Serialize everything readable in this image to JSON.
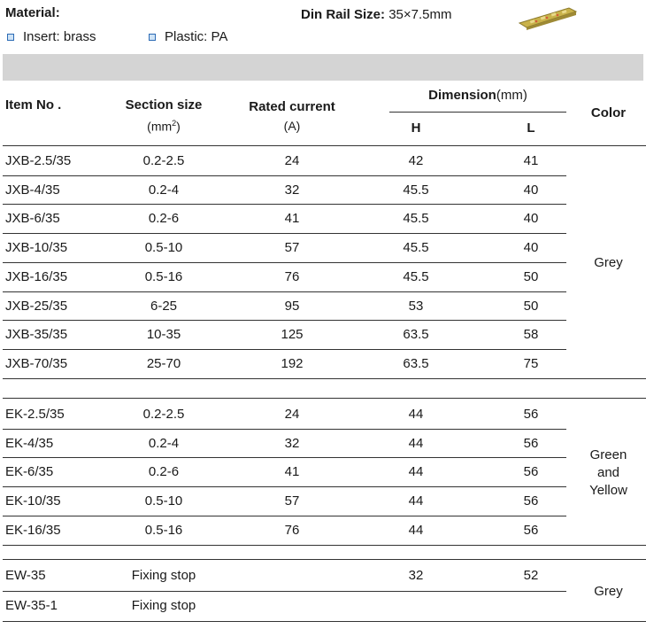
{
  "material": {
    "title": "Material:",
    "insert": "Insert: brass",
    "plastic": "Plastic: PA"
  },
  "din_rail": {
    "label": "Din Rail Size:",
    "value": "35×7.5mm"
  },
  "table": {
    "headers": {
      "item": "Item No .",
      "section": "Section size",
      "section_unit_pre": "(mm",
      "section_unit_sup": "2",
      "section_unit_post": ")",
      "current": "Rated current",
      "current_unit": "(A)",
      "dimension": "Dimension",
      "dimension_unit": "(mm)",
      "h": "H",
      "l": "L",
      "color": "Color"
    },
    "groups": [
      {
        "color": [
          "Grey"
        ],
        "rows": [
          {
            "item": "JXB-2.5/35",
            "section": "0.2-2.5",
            "current": "24",
            "h": "42",
            "l": "41"
          },
          {
            "item": "JXB-4/35",
            "section": "0.2-4",
            "current": "32",
            "h": "45.5",
            "l": "40"
          },
          {
            "item": "JXB-6/35",
            "section": "0.2-6",
            "current": "41",
            "h": "45.5",
            "l": "40"
          },
          {
            "item": "JXB-10/35",
            "section": "0.5-10",
            "current": "57",
            "h": "45.5",
            "l": "40"
          },
          {
            "item": "JXB-16/35",
            "section": "0.5-16",
            "current": "76",
            "h": "45.5",
            "l": "50"
          },
          {
            "item": "JXB-25/35",
            "section": "6-25",
            "current": "95",
            "h": "53",
            "l": "50"
          },
          {
            "item": "JXB-35/35",
            "section": "10-35",
            "current": "125",
            "h": "63.5",
            "l": "58"
          },
          {
            "item": "JXB-70/35",
            "section": "25-70",
            "current": "192",
            "h": "63.5",
            "l": "75"
          }
        ]
      },
      {
        "color": [
          "Green",
          "and",
          "Yellow"
        ],
        "rows": [
          {
            "item": "EK-2.5/35",
            "section": "0.2-2.5",
            "current": "24",
            "h": "44",
            "l": "56"
          },
          {
            "item": "EK-4/35",
            "section": "0.2-4",
            "current": "32",
            "h": "44",
            "l": "56"
          },
          {
            "item": "EK-6/35",
            "section": "0.2-6",
            "current": "41",
            "h": "44",
            "l": "56"
          },
          {
            "item": "EK-10/35",
            "section": "0.5-10",
            "current": "57",
            "h": "44",
            "l": "56"
          },
          {
            "item": "EK-16/35",
            "section": "0.5-16",
            "current": "76",
            "h": "44",
            "l": "56"
          }
        ]
      },
      {
        "color": [
          "Grey"
        ],
        "rows": [
          {
            "item": "EW-35",
            "section": "Fixing stop",
            "current": "",
            "h": "32",
            "l": "52"
          },
          {
            "item": "EW-35-1",
            "section": "Fixing stop",
            "current": "",
            "h": "",
            "l": ""
          }
        ]
      }
    ]
  }
}
